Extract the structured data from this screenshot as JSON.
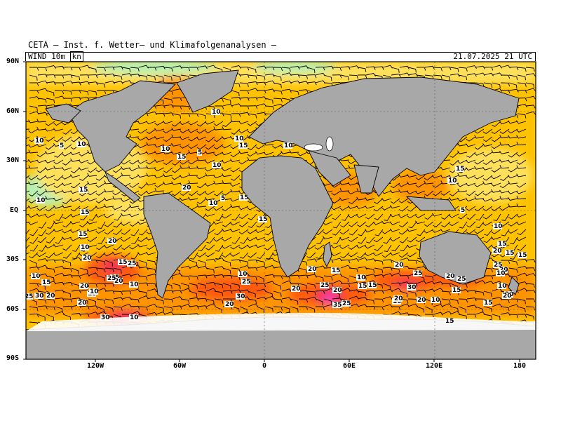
{
  "header": {
    "title": "CETA — Inst. f. Wetter— und Klimafolgenanalysen —"
  },
  "subheader": {
    "field": "WIND",
    "level": "10m",
    "unit": "kn",
    "datetime": "21.07.2025 21 UTC"
  },
  "axes": {
    "lat_labels": [
      "90N",
      "60N",
      "30N",
      "EQ",
      "30S",
      "60S",
      "90S"
    ],
    "lon_labels": [
      "120W",
      "60W",
      "0",
      "60E",
      "120E",
      "180"
    ]
  },
  "colors": {
    "land": "#a8a8a8",
    "ocean_low": "#b8f0b0",
    "ocean_10": "#ffe05a",
    "ocean_15": "#ffc200",
    "ocean_20": "#ff9400",
    "ocean_25": "#ff5a10",
    "ocean_30": "#f0205a",
    "ocean_35": "#ff4fd2",
    "ice": "#ffffff"
  },
  "speed_labels": [
    "5",
    "10",
    "10",
    "15",
    "10",
    "15",
    "20",
    "10",
    "5",
    "10",
    "10",
    "15",
    "15",
    "10",
    "15",
    "10",
    "5",
    "10",
    "15",
    "15",
    "10",
    "20",
    "20",
    "15",
    "25",
    "15",
    "10",
    "20",
    "10",
    "25",
    "10",
    "30",
    "15",
    "20",
    "25",
    "30",
    "15",
    "10",
    "20",
    "20",
    "20",
    "10",
    "25",
    "30",
    "35",
    "25",
    "20",
    "15",
    "20",
    "10",
    "25",
    "20",
    "30",
    "15",
    "20",
    "25",
    "15",
    "10",
    "20",
    "20",
    "15",
    "25",
    "20",
    "15",
    "10",
    "5",
    "10",
    "15",
    "10",
    "15",
    "20",
    "25",
    "20",
    "15",
    "15",
    "10",
    "20",
    "15",
    "10",
    "20"
  ]
}
